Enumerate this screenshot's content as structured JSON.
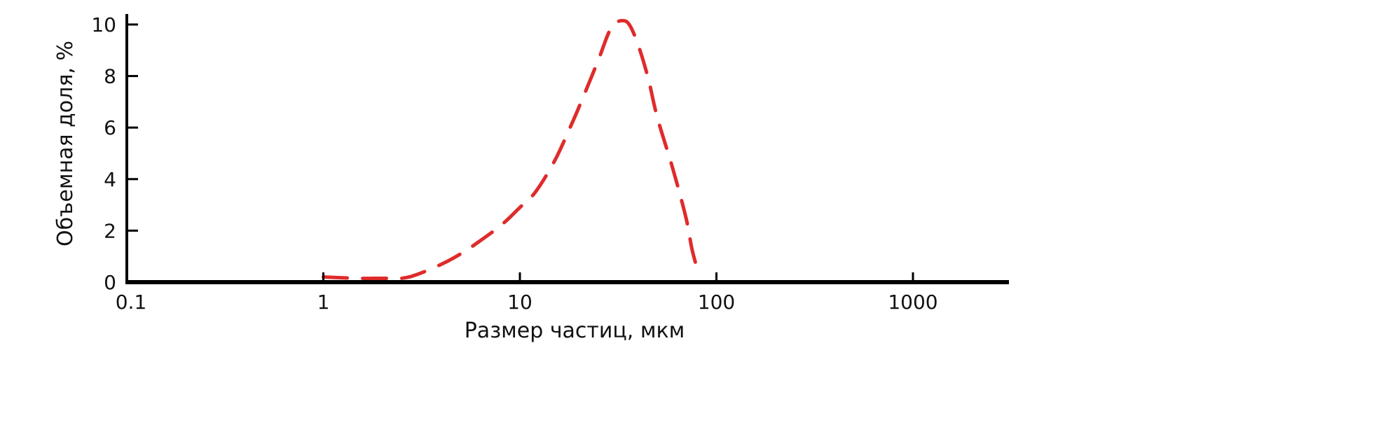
{
  "chart_data": {
    "type": "line",
    "title": "",
    "xlabel": "Размер частиц, мкм",
    "ylabel": "Объемная доля, %",
    "x_scale": "log",
    "xlim": [
      0.1,
      3000
    ],
    "ylim": [
      0,
      10
    ],
    "x_ticks": [
      0.1,
      1,
      10,
      100,
      1000
    ],
    "x_tick_labels": [
      "0.1",
      "1",
      "10",
      "100",
      "1000"
    ],
    "y_ticks": [
      0,
      2,
      4,
      6,
      8,
      10
    ],
    "y_tick_labels": [
      "0",
      "2",
      "4",
      "6",
      "8",
      "10"
    ],
    "grid": false,
    "series": [
      {
        "color": "#e02b2b",
        "line_style": "dashed",
        "x": [
          1,
          1.5,
          2,
          2.5,
          3,
          4,
          5,
          6,
          8,
          10,
          12,
          15,
          18,
          20,
          25,
          28,
          30,
          33,
          36,
          40,
          45,
          50,
          60,
          70,
          75,
          80
        ],
        "y": [
          0.2,
          0.15,
          0.15,
          0.15,
          0.3,
          0.7,
          1.1,
          1.5,
          2.2,
          2.9,
          3.5,
          4.7,
          6.0,
          6.8,
          8.6,
          9.6,
          10.0,
          10.15,
          10.0,
          9.2,
          7.9,
          6.4,
          4.4,
          2.5,
          1.3,
          0.5
        ]
      }
    ]
  }
}
